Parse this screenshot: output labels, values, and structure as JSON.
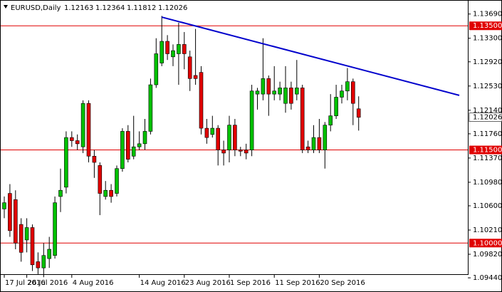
{
  "chart_data": {
    "type": "candlestick",
    "symbol": "EURUSD,Daily",
    "categories": [
      "17 Jul 2016",
      null,
      null,
      null,
      "26 Jul 2016",
      null,
      null,
      null,
      null,
      null,
      null,
      null,
      "4 Aug 2016",
      null,
      null,
      null,
      null,
      null,
      null,
      null,
      null,
      null,
      null,
      null,
      "14 Aug 2016",
      null,
      null,
      null,
      null,
      null,
      null,
      null,
      "23 Aug 2016",
      null,
      null,
      null,
      null,
      null,
      null,
      null,
      "1 Sep 2016",
      null,
      null,
      null,
      null,
      null,
      null,
      null,
      "11 Sep 2016",
      null,
      null,
      null,
      null,
      null,
      null,
      null,
      "20 Sep 2016",
      null,
      null,
      null,
      null,
      null,
      null,
      null
    ],
    "open": [
      1.1055,
      1.108,
      1.107,
      1.103,
      1.1005,
      1.1025,
      1.097,
      1.096,
      1.0975,
      1.098,
      1.1075,
      1.109,
      1.117,
      1.1165,
      1.1155,
      1.1225,
      1.114,
      1.1125,
      1.1075,
      1.1085,
      1.108,
      1.112,
      1.118,
      1.114,
      1.1155,
      1.116,
      1.118,
      1.1255,
      1.129,
      1.1325,
      1.13,
      1.1305,
      1.132,
      1.13,
      1.127,
      1.1275,
      1.1185,
      1.1175,
      1.1185,
      1.115,
      1.115,
      1.119,
      1.115,
      1.115,
      1.115,
      1.124,
      1.124,
      1.1265,
      1.124,
      1.124,
      1.1225,
      1.125,
      1.124,
      1.125,
      1.1155,
      1.115,
      1.117,
      1.115,
      1.119,
      1.1205,
      1.1235,
      1.1245,
      1.126,
      1.12163
    ],
    "high": [
      1.1075,
      1.1095,
      1.1085,
      1.104,
      1.104,
      1.103,
      1.0985,
      1.1,
      1.101,
      1.1075,
      1.112,
      1.118,
      1.118,
      1.1175,
      1.123,
      1.123,
      1.115,
      1.113,
      1.11,
      1.1095,
      1.1125,
      1.1185,
      1.119,
      1.1205,
      1.118,
      1.12,
      1.1265,
      1.133,
      1.1366,
      1.1335,
      1.132,
      1.1355,
      1.134,
      1.131,
      1.1345,
      1.1285,
      1.12,
      1.1205,
      1.119,
      1.1165,
      1.1205,
      1.12,
      1.1155,
      1.116,
      1.1255,
      1.125,
      1.133,
      1.127,
      1.1285,
      1.126,
      1.1285,
      1.126,
      1.1295,
      1.1255,
      1.1165,
      1.119,
      1.12,
      1.1195,
      1.124,
      1.1255,
      1.1255,
      1.1282,
      1.1265,
      1.12364
    ],
    "low": [
      1.104,
      1.101,
      1.099,
      1.097,
      1.0985,
      1.0955,
      1.095,
      1.0945,
      1.096,
      1.0975,
      1.105,
      1.108,
      1.1155,
      1.115,
      1.1145,
      1.113,
      1.1105,
      1.1045,
      1.107,
      1.1065,
      1.1075,
      1.1115,
      1.113,
      1.1135,
      1.115,
      1.115,
      1.1175,
      1.125,
      1.1285,
      1.1295,
      1.1285,
      1.1255,
      1.128,
      1.1245,
      1.1255,
      1.1175,
      1.116,
      1.117,
      1.1125,
      1.1125,
      1.113,
      1.114,
      1.114,
      1.1135,
      1.114,
      1.1215,
      1.123,
      1.1205,
      1.123,
      1.123,
      1.121,
      1.1215,
      1.123,
      1.1145,
      1.1145,
      1.1145,
      1.1145,
      1.112,
      1.118,
      1.12,
      1.1225,
      1.123,
      1.119,
      1.11812
    ],
    "close": [
      1.1065,
      1.102,
      1.1,
      1.0985,
      1.1025,
      1.0965,
      1.096,
      1.098,
      1.099,
      1.1065,
      1.1085,
      1.117,
      1.1165,
      1.116,
      1.1225,
      1.114,
      1.113,
      1.108,
      1.1085,
      1.1075,
      1.112,
      1.118,
      1.1135,
      1.1155,
      1.116,
      1.118,
      1.1255,
      1.1305,
      1.1325,
      1.1305,
      1.131,
      1.132,
      1.1305,
      1.1265,
      1.1265,
      1.1185,
      1.117,
      1.1185,
      1.115,
      1.1145,
      1.119,
      1.115,
      1.1148,
      1.1145,
      1.1245,
      1.1245,
      1.1265,
      1.124,
      1.1245,
      1.125,
      1.125,
      1.1225,
      1.125,
      1.115,
      1.115,
      1.117,
      1.115,
      1.119,
      1.1205,
      1.1235,
      1.1245,
      1.126,
      1.1225,
      1.12026
    ],
    "up_color": "#00c000",
    "down_color": "#e00000",
    "ylim": [
      1.0951,
      1.1387
    ],
    "yticks": [
      {
        "value": 1.1369,
        "label": "1.13690"
      },
      {
        "value": 1.133,
        "label": "1.13300"
      },
      {
        "value": 1.1292,
        "label": "1.12920"
      },
      {
        "value": 1.1253,
        "label": "1.12530"
      },
      {
        "value": 1.1214,
        "label": "1.12140"
      },
      {
        "value": 1.1176,
        "label": "1.11760"
      },
      {
        "value": 1.1137,
        "label": "1.11370"
      },
      {
        "value": 1.1098,
        "label": "1.10980"
      },
      {
        "value": 1.106,
        "label": "1.10600"
      },
      {
        "value": 1.1021,
        "label": "1.10210"
      },
      {
        "value": 1.0982,
        "label": "1.09820"
      },
      {
        "value": 1.0944,
        "label": "1.09440"
      }
    ],
    "hlines": [
      {
        "value": 1.135,
        "label": "1.13500"
      },
      {
        "value": 1.115,
        "label": "1.11500"
      },
      {
        "value": 1.1,
        "label": "1.10000"
      }
    ],
    "hline_color": "#e00000",
    "trendline": {
      "values": [
        1.1364,
        1.1238
      ],
      "color": "#0000cc"
    }
  }
}
